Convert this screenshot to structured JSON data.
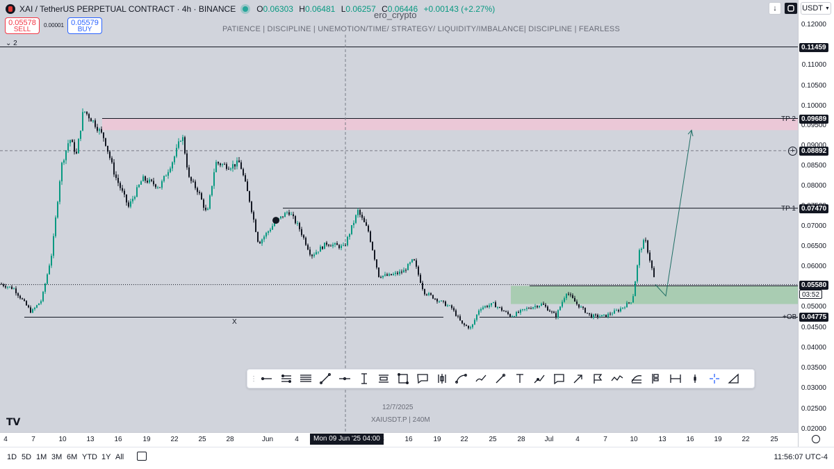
{
  "header": {
    "title": "XAI / TetherUS PERPETUAL CONTRACT · 4h · BINANCE",
    "ohlc": {
      "o_key": "O",
      "o": "0.06303",
      "h_key": "H",
      "h": "0.06481",
      "l_key": "L",
      "l": "0.06257",
      "c_key": "C",
      "c": "0.06446",
      "change": "+0.00143 (+2.27%)"
    }
  },
  "trade": {
    "sell_price": "0.05578",
    "sell_label": "SELL",
    "buy_price": "0.05579",
    "buy_label": "BUY",
    "spread": "0.00001"
  },
  "indicators_collapse": "⌄ 2",
  "watermark": {
    "author": "ero_crypto",
    "motto": "PATIENCE   |   DISCIPLINE   |   UNEMOTION/TIME/ STRATEGY/ LIQUIDITY/IMBALANCE|   DISCIPLINE   |   FEARLESS",
    "date": "12/7/2025",
    "symbol": "XAIUSDT.P | 240M"
  },
  "top_right": {
    "download_icon": "↓",
    "currency": "USDT"
  },
  "price_ticks": [
    "0.12000",
    "0.11000",
    "0.10500",
    "0.10000",
    "0.09500",
    "0.09000",
    "0.08500",
    "0.08000",
    "0.07500",
    "0.07000",
    "0.06500",
    "0.06000",
    "0.05500",
    "0.05000",
    "0.04500",
    "0.04000",
    "0.03500",
    "0.03000",
    "0.02500",
    "0.02000"
  ],
  "levels": {
    "top": {
      "price": "0.11459"
    },
    "tp2": {
      "label": "TP 2",
      "price": "0.09689"
    },
    "crosshair": {
      "price": "0.08892"
    },
    "tp1": {
      "label": "TP 1",
      "price": "0.07470"
    },
    "last": {
      "price": "0.05580",
      "countdown": "03:52"
    },
    "ob": {
      "label": "+OB",
      "price": "0.04775"
    },
    "x_label": "X"
  },
  "time_ticks": [
    "4",
    "7",
    "10",
    "13",
    "16",
    "19",
    "22",
    "25",
    "28",
    "Jun",
    "4",
    "3",
    "16",
    "19",
    "22",
    "25",
    "28",
    "Jul",
    "4",
    "7",
    "10",
    "13",
    "16",
    "19",
    "22",
    "25"
  ],
  "cursor_time": "Mon 09 Jun '25   04:00",
  "toolbar": {
    "tools": [
      "grip",
      "horizontal-ray",
      "parallel-channel",
      "fib-retracement",
      "trend-line",
      "horizontal-line",
      "vertical-line",
      "regression-trend",
      "rectangle",
      "callout",
      "pitchfork",
      "curve",
      "path",
      "brush",
      "text",
      "arrow-marker",
      "comment",
      "arrow",
      "flag",
      "polyline",
      "fib-channel",
      "long-position",
      "date-range",
      "pin",
      "crosshair",
      "measure"
    ]
  },
  "bottom_bar": {
    "ranges": [
      "1D",
      "5D",
      "1M",
      "3M",
      "6M",
      "YTD",
      "1Y",
      "All"
    ],
    "clock": "11:56:07 UTC-4"
  },
  "colors": {
    "up": "#089981",
    "down": "#131722",
    "tp_zone": "#f0c6d6",
    "ob_zone": "#9fc9a8",
    "bg": "#d1d4dc"
  }
}
